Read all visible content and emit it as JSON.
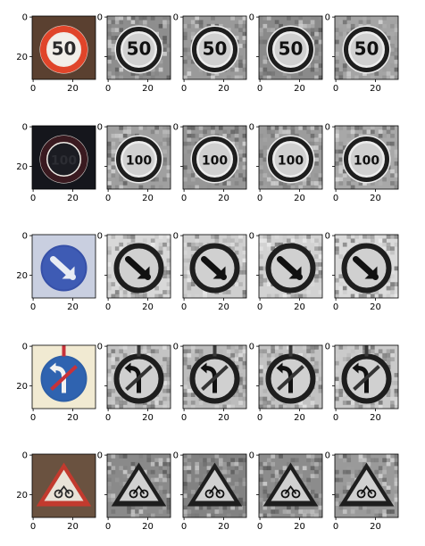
{
  "chart_data": {
    "type": "image_grid",
    "rows": 5,
    "cols": 5,
    "axis": {
      "xticks": [
        "0",
        "20"
      ],
      "yticks": [
        "0",
        "20"
      ]
    },
    "row_labels": [
      "50",
      "100",
      "",
      "",
      ""
    ],
    "panels": [
      {
        "row": 0,
        "col": 0,
        "kind": "color",
        "sign": "speed-limit",
        "text": "50",
        "bg": "#5a4030",
        "ring": "#e0452a",
        "face": "#f2efe9",
        "ink": "#2a2a2a"
      },
      {
        "row": 0,
        "col": 1,
        "kind": "gray",
        "sign": "speed-limit",
        "text": "50",
        "bg": "#8e8e8e"
      },
      {
        "row": 0,
        "col": 2,
        "kind": "gray",
        "sign": "speed-limit",
        "text": "50",
        "bg": "#9a9a9a"
      },
      {
        "row": 0,
        "col": 3,
        "kind": "gray",
        "sign": "speed-limit",
        "text": "50",
        "bg": "#8a8a8a"
      },
      {
        "row": 0,
        "col": 4,
        "kind": "gray",
        "sign": "speed-limit",
        "text": "50",
        "bg": "#a4a4a4"
      },
      {
        "row": 1,
        "col": 0,
        "kind": "color",
        "sign": "speed-limit",
        "text": "100",
        "bg": "#15161c",
        "ring": "#3a1a20",
        "face": "#1b1c22",
        "ink": "#2c2d33"
      },
      {
        "row": 1,
        "col": 1,
        "kind": "gray",
        "sign": "speed-limit",
        "text": "100",
        "bg": "#a0a0a0"
      },
      {
        "row": 1,
        "col": 2,
        "kind": "gray",
        "sign": "speed-limit",
        "text": "100",
        "bg": "#969696"
      },
      {
        "row": 1,
        "col": 3,
        "kind": "gray",
        "sign": "speed-limit",
        "text": "100",
        "bg": "#9c9c9c"
      },
      {
        "row": 1,
        "col": 4,
        "kind": "gray",
        "sign": "speed-limit",
        "text": "100",
        "bg": "#a8a8a8"
      },
      {
        "row": 2,
        "col": 0,
        "kind": "color",
        "sign": "keep-direction",
        "text": "",
        "bg": "#c9cfe0",
        "ring": "#3650a8",
        "face": "#3e5bb4",
        "ink": "#e8ecf4"
      },
      {
        "row": 2,
        "col": 1,
        "kind": "gray",
        "sign": "keep-direction",
        "text": "",
        "bg": "#d8d8d8"
      },
      {
        "row": 2,
        "col": 2,
        "kind": "gray",
        "sign": "keep-direction",
        "text": "",
        "bg": "#cfcfcf"
      },
      {
        "row": 2,
        "col": 3,
        "kind": "gray",
        "sign": "keep-direction",
        "text": "",
        "bg": "#d2d2d2"
      },
      {
        "row": 2,
        "col": 4,
        "kind": "gray",
        "sign": "keep-direction",
        "text": "",
        "bg": "#dadada"
      },
      {
        "row": 3,
        "col": 0,
        "kind": "color",
        "sign": "no-turn",
        "text": "",
        "bg": "#f1ead2",
        "ring": "#2d5fa8",
        "face": "#2f63b0",
        "ink": "#f2f2f2"
      },
      {
        "row": 3,
        "col": 1,
        "kind": "gray",
        "sign": "no-turn",
        "text": "",
        "bg": "#c4c4c4"
      },
      {
        "row": 3,
        "col": 2,
        "kind": "gray",
        "sign": "no-turn",
        "text": "",
        "bg": "#bcbcbc"
      },
      {
        "row": 3,
        "col": 3,
        "kind": "gray",
        "sign": "no-turn",
        "text": "",
        "bg": "#c2c2c2"
      },
      {
        "row": 3,
        "col": 4,
        "kind": "gray",
        "sign": "no-turn",
        "text": "",
        "bg": "#cacaca"
      },
      {
        "row": 4,
        "col": 0,
        "kind": "color",
        "sign": "warning-triangle",
        "text": "",
        "bg": "#6a5240",
        "ring": "#c23a2e",
        "face": "#e9e3d8",
        "ink": "#2a2a2a"
      },
      {
        "row": 4,
        "col": 1,
        "kind": "gray",
        "sign": "warning-triangle",
        "text": "",
        "bg": "#8a8a8a"
      },
      {
        "row": 4,
        "col": 2,
        "kind": "gray",
        "sign": "warning-triangle",
        "text": "",
        "bg": "#828282"
      },
      {
        "row": 4,
        "col": 3,
        "kind": "gray",
        "sign": "warning-triangle",
        "text": "",
        "bg": "#8c8c8c"
      },
      {
        "row": 4,
        "col": 4,
        "kind": "gray",
        "sign": "warning-triangle",
        "text": "",
        "bg": "#9a9a9a"
      }
    ]
  }
}
